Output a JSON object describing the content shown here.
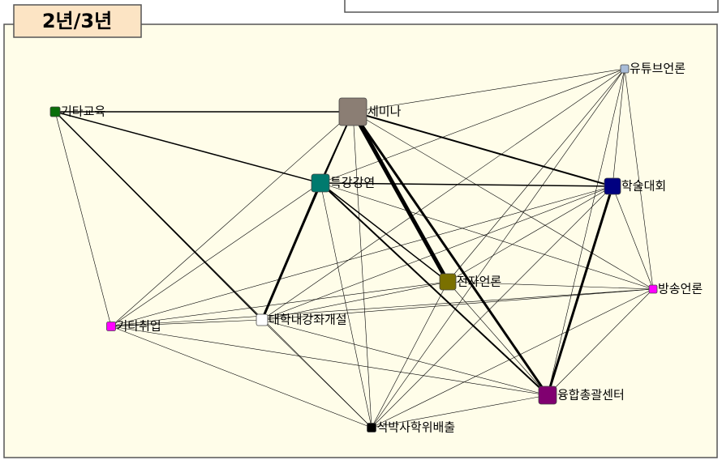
{
  "header": {
    "title": "2년/3년"
  },
  "nodes": [
    {
      "label": "세미나"
    },
    {
      "label": "기타교육"
    },
    {
      "label": "특강강연"
    },
    {
      "label": "학술대회"
    },
    {
      "label": "유튜브언론"
    },
    {
      "label": "전자언론"
    },
    {
      "label": "방송언론"
    },
    {
      "label": "기타취업"
    },
    {
      "label": "대학내강좌개설"
    },
    {
      "label": "융합총괄센터"
    },
    {
      "label": "석박사학위배출"
    }
  ]
}
